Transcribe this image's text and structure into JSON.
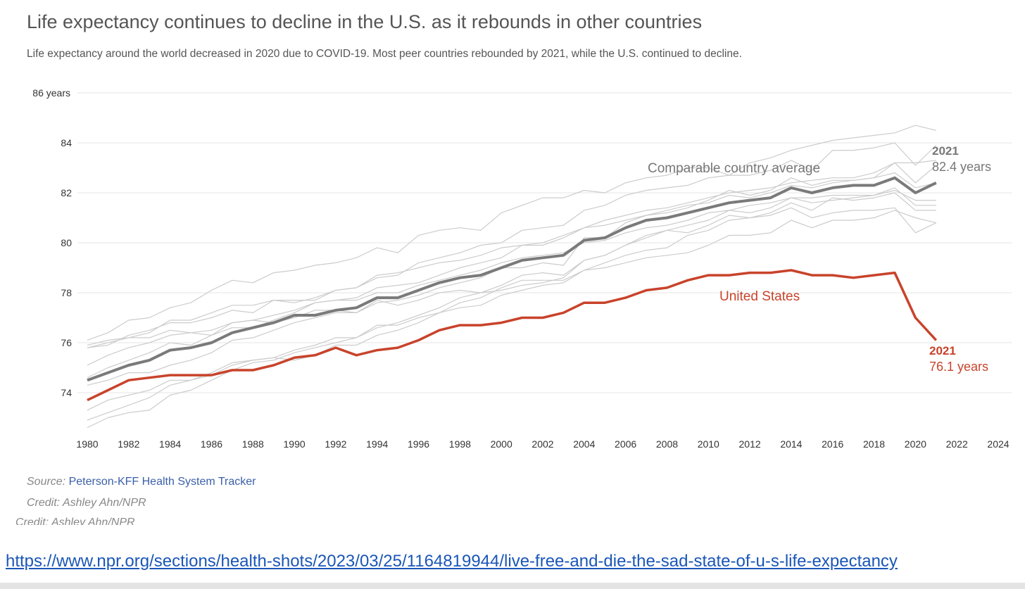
{
  "title": "Life expectancy continues to decline in the U.S. as it rebounds in other countries",
  "subtitle": "Life expectancy around the world decreased in 2020 due to COVID-19. Most peer countries rebounded by 2021, while the U.S. continued to decline.",
  "source_label": "Source:",
  "source_link": "Peterson-KFF Health System Tracker",
  "credit": "Credit: Ashley Ahn/NPR",
  "ghost_credit": "Credit: Ashley Ahn/NPR",
  "url": "https://www.npr.org/sections/health-shots/2023/03/25/1164819944/live-free-and-die-the-sad-state-of-u-s-life-expectancy",
  "colors": {
    "us": "#c8432b",
    "average": "#7a7a7a",
    "peers": "#cccccc",
    "grid": "#e6e6e6"
  },
  "chart_data": {
    "type": "line",
    "title": "Life expectancy continues to decline in the U.S. as it rebounds in other countries",
    "xlabel": "",
    "ylabel": "years",
    "xlim": [
      1980,
      2024
    ],
    "ylim": [
      72.6,
      86
    ],
    "x_ticks": [
      "1980",
      "1982",
      "1984",
      "1986",
      "1988",
      "1990",
      "1992",
      "1994",
      "1996",
      "1998",
      "2000",
      "2002",
      "2004",
      "2006",
      "2008",
      "2010",
      "2012",
      "2014",
      "2016",
      "2018",
      "2020",
      "2022",
      "2024"
    ],
    "y_ticks": [
      {
        "value": 86,
        "label": "86 years"
      },
      {
        "value": 84,
        "label": "84"
      },
      {
        "value": 82,
        "label": "82"
      },
      {
        "value": 80,
        "label": "80"
      },
      {
        "value": 78,
        "label": "78"
      },
      {
        "value": 76,
        "label": "76"
      },
      {
        "value": 74,
        "label": "74"
      }
    ],
    "x_start": 1980,
    "series": [
      {
        "name": "United States",
        "label": "United States",
        "role": "us",
        "values": [
          73.7,
          74.1,
          74.5,
          74.6,
          74.7,
          74.7,
          74.7,
          74.9,
          74.9,
          75.1,
          75.4,
          75.5,
          75.8,
          75.5,
          75.7,
          75.8,
          76.1,
          76.5,
          76.7,
          76.7,
          76.8,
          77.0,
          77.0,
          77.2,
          77.6,
          77.6,
          77.8,
          78.1,
          78.2,
          78.5,
          78.7,
          78.7,
          78.8,
          78.8,
          78.9,
          78.7,
          78.7,
          78.6,
          78.7,
          78.8,
          77.0,
          76.1
        ]
      },
      {
        "name": "Comparable country average",
        "label": "Comparable country average",
        "role": "average",
        "values": [
          74.5,
          74.8,
          75.1,
          75.3,
          75.7,
          75.8,
          76.0,
          76.4,
          76.6,
          76.8,
          77.1,
          77.1,
          77.3,
          77.4,
          77.8,
          77.8,
          78.1,
          78.4,
          78.6,
          78.7,
          79.0,
          79.3,
          79.4,
          79.5,
          80.1,
          80.2,
          80.6,
          80.9,
          81.0,
          81.2,
          81.4,
          81.6,
          81.7,
          81.8,
          82.2,
          82.0,
          82.2,
          82.3,
          82.3,
          82.6,
          82.0,
          82.4
        ]
      },
      {
        "name": "peer-1",
        "role": "peer",
        "values": [
          76.1,
          76.4,
          76.9,
          77.0,
          77.4,
          77.6,
          78.1,
          78.5,
          78.4,
          78.8,
          78.9,
          79.1,
          79.2,
          79.4,
          79.8,
          79.6,
          80.3,
          80.5,
          80.6,
          80.5,
          81.2,
          81.5,
          81.8,
          81.8,
          82.1,
          82.0,
          82.4,
          82.6,
          82.7,
          83.0,
          83.0,
          82.7,
          83.2,
          83.4,
          83.7,
          83.9,
          84.1,
          84.2,
          84.3,
          84.4,
          84.7,
          84.5
        ]
      },
      {
        "name": "peer-2",
        "role": "peer",
        "values": [
          75.8,
          76.0,
          76.2,
          76.4,
          76.9,
          76.9,
          77.2,
          77.5,
          77.5,
          77.7,
          77.6,
          77.8,
          78.1,
          78.2,
          78.6,
          78.7,
          79.2,
          79.4,
          79.6,
          79.9,
          80.0,
          80.5,
          80.6,
          80.7,
          81.3,
          81.5,
          81.9,
          82.1,
          82.2,
          82.3,
          82.6,
          82.7,
          82.7,
          82.9,
          83.3,
          82.9,
          83.7,
          83.7,
          83.8,
          84.0,
          83.1,
          83.9
        ]
      },
      {
        "name": "peer-3",
        "role": "peer",
        "values": [
          74.6,
          75.0,
          75.3,
          75.6,
          76.0,
          75.9,
          76.3,
          76.6,
          76.6,
          76.9,
          77.2,
          77.6,
          77.7,
          77.8,
          78.2,
          78.3,
          78.4,
          78.7,
          79.0,
          79.2,
          79.4,
          79.9,
          80.0,
          80.3,
          80.6,
          80.9,
          81.1,
          81.3,
          81.4,
          81.6,
          81.8,
          82.0,
          82.1,
          82.2,
          82.4,
          82.5,
          82.6,
          82.6,
          82.8,
          83.2,
          83.2,
          83.3
        ]
      },
      {
        "name": "peer-4",
        "role": "peer",
        "values": [
          75.1,
          75.5,
          75.8,
          76.0,
          76.3,
          76.4,
          76.5,
          76.8,
          76.9,
          77.1,
          77.3,
          77.6,
          77.7,
          77.7,
          78.0,
          78.0,
          78.3,
          78.5,
          78.7,
          78.9,
          79.2,
          79.4,
          79.5,
          79.6,
          80.0,
          80.1,
          80.4,
          80.6,
          80.7,
          80.9,
          81.2,
          81.3,
          81.5,
          81.6,
          81.8,
          81.8,
          81.9,
          81.9,
          81.9,
          82.1,
          81.7,
          81.7
        ]
      },
      {
        "name": "peer-5",
        "role": "peer",
        "values": [
          72.9,
          73.2,
          73.5,
          73.8,
          74.3,
          74.5,
          74.7,
          75.1,
          75.3,
          75.4,
          75.3,
          75.5,
          75.9,
          75.9,
          76.3,
          76.5,
          76.8,
          77.2,
          77.6,
          77.8,
          78.2,
          78.5,
          78.5,
          78.5,
          78.9,
          79.0,
          79.2,
          79.4,
          79.5,
          79.6,
          79.9,
          80.3,
          80.3,
          80.4,
          80.9,
          80.6,
          80.9,
          80.9,
          81.0,
          81.3,
          81.0,
          80.8
        ]
      },
      {
        "name": "peer-6",
        "role": "peer",
        "values": [
          73.3,
          73.7,
          73.9,
          74.1,
          74.5,
          74.5,
          74.8,
          75.2,
          75.3,
          75.4,
          75.7,
          75.9,
          76.2,
          76.2,
          76.7,
          76.7,
          77.0,
          77.2,
          77.4,
          77.5,
          77.9,
          78.1,
          78.3,
          78.4,
          78.9,
          79.2,
          79.5,
          79.7,
          79.8,
          80.3,
          80.5,
          80.9,
          81.0,
          81.1,
          81.4,
          81.0,
          81.2,
          81.3,
          81.3,
          81.4,
          80.4,
          80.8
        ]
      },
      {
        "name": "peer-7",
        "role": "peer",
        "values": [
          74.3,
          74.5,
          74.8,
          74.8,
          75.1,
          75.3,
          75.6,
          76.1,
          76.2,
          76.5,
          76.8,
          77.0,
          77.2,
          77.2,
          77.6,
          77.7,
          77.9,
          78.2,
          78.4,
          78.6,
          79.0,
          79.0,
          79.2,
          79.1,
          80.2,
          80.2,
          80.8,
          81.1,
          81.2,
          81.4,
          81.7,
          82.1,
          81.9,
          82.1,
          82.6,
          82.3,
          82.5,
          82.5,
          82.6,
          82.8,
          82.2,
          82.4
        ]
      },
      {
        "name": "peer-8",
        "role": "peer",
        "values": [
          75.8,
          75.9,
          76.3,
          76.5,
          76.8,
          76.8,
          77.0,
          77.3,
          77.2,
          77.7,
          77.7,
          77.7,
          78.1,
          78.2,
          78.7,
          78.8,
          79.0,
          79.2,
          79.3,
          79.5,
          79.8,
          79.9,
          79.9,
          80.2,
          80.6,
          80.7,
          80.9,
          81.1,
          81.3,
          81.5,
          81.6,
          81.9,
          81.8,
          82.0,
          82.3,
          82.2,
          82.4,
          82.5,
          82.6,
          83.2,
          82.4,
          83.1
        ]
      },
      {
        "name": "peer-9",
        "role": "peer",
        "values": [
          75.9,
          76.1,
          76.2,
          76.2,
          76.5,
          76.4,
          76.3,
          76.8,
          76.9,
          76.8,
          77.0,
          77.3,
          77.3,
          77.2,
          77.7,
          77.5,
          77.7,
          78.0,
          78.1,
          78.0,
          78.1,
          78.3,
          78.4,
          78.6,
          79.3,
          79.5,
          79.9,
          80.3,
          80.5,
          80.7,
          80.9,
          81.3,
          81.2,
          81.4,
          81.8,
          81.6,
          81.7,
          81.8,
          81.9,
          82.2,
          81.5,
          81.5
        ]
      },
      {
        "name": "peer-10",
        "role": "peer",
        "values": [
          72.6,
          73.0,
          73.2,
          73.3,
          73.9,
          74.1,
          74.5,
          74.9,
          75.2,
          75.3,
          75.6,
          75.8,
          76.0,
          76.2,
          76.6,
          76.8,
          77.1,
          77.4,
          77.8,
          78.0,
          78.3,
          78.7,
          78.8,
          78.7,
          79.3,
          79.5,
          79.9,
          80.2,
          80.5,
          80.4,
          80.7,
          81.1,
          81.0,
          81.2,
          81.6,
          81.3,
          81.8,
          81.7,
          81.8,
          82.0,
          81.3,
          81.3
        ]
      }
    ],
    "annotations": [
      {
        "id": "avg-end",
        "year_label": "2021",
        "value_label": "82.4 years"
      },
      {
        "id": "us-end",
        "year_label": "2021",
        "value_label": "76.1 years"
      }
    ],
    "grid": true
  }
}
